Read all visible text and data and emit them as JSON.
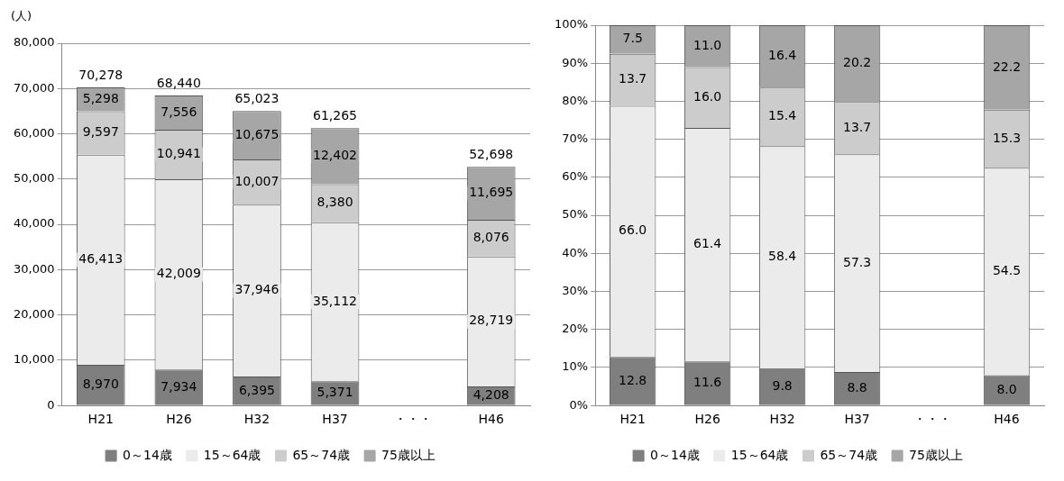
{
  "chart_data": [
    {
      "type": "bar",
      "stacked": true,
      "ylabel": "(人)",
      "categories": [
        "H21",
        "H26",
        "H32",
        "H37",
        "・・・",
        "H46"
      ],
      "ylim": [
        0,
        80000
      ],
      "yticks": [
        0,
        {
          "value": 10000,
          "label": "10,000"
        },
        {
          "value": 20000,
          "label": "20,000"
        },
        {
          "value": 30000,
          "label": "30,000"
        },
        {
          "value": 40000,
          "label": "40,000"
        },
        {
          "value": 50000,
          "label": "50,000"
        },
        {
          "value": 60000,
          "label": "60,000"
        },
        {
          "value": 70000,
          "label": "70,000"
        },
        {
          "value": 80000,
          "label": "80,000"
        }
      ],
      "grid": "y",
      "legend": "bottom",
      "series": [
        {
          "name": "0～14歳",
          "color": "#7f7f7f",
          "values": [
            8970,
            7934,
            6395,
            5371,
            null,
            4208
          ],
          "value_labels": [
            "8,970",
            "7,934",
            "6,395",
            "5,371",
            null,
            "4,208"
          ]
        },
        {
          "name": "15～64歳",
          "color": "#ebebeb",
          "values": [
            46413,
            42009,
            37946,
            35112,
            null,
            28719
          ],
          "value_labels": [
            "46,413",
            "42,009",
            "37,946",
            "35,112",
            null,
            "28,719"
          ]
        },
        {
          "name": "65～74歳",
          "color": "#cccccc",
          "values": [
            9597,
            10941,
            10007,
            8380,
            null,
            8076
          ],
          "value_labels": [
            "9,597",
            "10,941",
            "10,007",
            "8,380",
            null,
            "8,076"
          ]
        },
        {
          "name": "75歳以上",
          "color": "#a6a6a6",
          "values": [
            5298,
            7556,
            10675,
            12402,
            null,
            11695
          ],
          "value_labels": [
            "5,298",
            "7,556",
            "10,675",
            "12,402",
            null,
            "11,695"
          ]
        }
      ],
      "totals": [
        "70,278",
        "68,440",
        "65,023",
        "61,265",
        null,
        "52,698"
      ]
    },
    {
      "type": "bar",
      "stacked": true,
      "categories": [
        "H21",
        "H26",
        "H32",
        "H37",
        "・・・",
        "H46"
      ],
      "ylim": [
        0,
        100
      ],
      "yticks": [
        {
          "value": 0,
          "label": "0%"
        },
        {
          "value": 10,
          "label": "10%"
        },
        {
          "value": 20,
          "label": "20%"
        },
        {
          "value": 30,
          "label": "30%"
        },
        {
          "value": 40,
          "label": "40%"
        },
        {
          "value": 50,
          "label": "50%"
        },
        {
          "value": 60,
          "label": "60%"
        },
        {
          "value": 70,
          "label": "70%"
        },
        {
          "value": 80,
          "label": "80%"
        },
        {
          "value": 90,
          "label": "90%"
        },
        {
          "value": 100,
          "label": "100%"
        }
      ],
      "grid": "y",
      "legend": "bottom",
      "series": [
        {
          "name": "0～14歳",
          "color": "#7f7f7f",
          "values": [
            12.8,
            11.6,
            9.8,
            8.8,
            null,
            8.0
          ],
          "value_labels": [
            "12.8",
            "11.6",
            "9.8",
            "8.8",
            null,
            "8.0"
          ]
        },
        {
          "name": "15～64歳",
          "color": "#ebebeb",
          "values": [
            66.0,
            61.4,
            58.4,
            57.3,
            null,
            54.5
          ],
          "value_labels": [
            "66.0",
            "61.4",
            "58.4",
            "57.3",
            null,
            "54.5"
          ]
        },
        {
          "name": "65～74歳",
          "color": "#cccccc",
          "values": [
            13.7,
            16.0,
            15.4,
            13.7,
            null,
            15.3
          ],
          "value_labels": [
            "13.7",
            "16.0",
            "15.4",
            "13.7",
            null,
            "15.3"
          ]
        },
        {
          "name": "75歳以上",
          "color": "#a6a6a6",
          "values": [
            7.5,
            11.0,
            16.4,
            20.2,
            null,
            22.2
          ],
          "value_labels": [
            "7.5",
            "11.0",
            "16.4",
            "20.2",
            null,
            "22.2"
          ]
        }
      ]
    }
  ]
}
